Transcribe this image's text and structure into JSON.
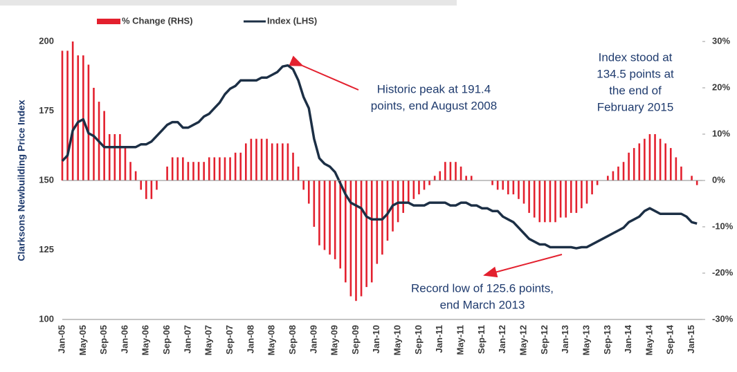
{
  "chart_data": {
    "type": "bar_line",
    "y_label": "Clarksons Newbuilding Price Index",
    "categories": [
      "Jan-05",
      null,
      null,
      null,
      "May-05",
      null,
      null,
      null,
      "Sep-05",
      null,
      null,
      null,
      "Jan-06",
      null,
      null,
      null,
      "May-06",
      null,
      null,
      null,
      "Sep-06",
      null,
      null,
      null,
      "Jan-07",
      null,
      null,
      null,
      "May-07",
      null,
      null,
      null,
      "Sep-07",
      null,
      null,
      null,
      "Jan-08",
      null,
      null,
      null,
      "May-08",
      null,
      null,
      null,
      "Sep-08",
      null,
      null,
      null,
      "Jan-09",
      null,
      null,
      null,
      "May-09",
      null,
      null,
      null,
      "Sep-09",
      null,
      null,
      null,
      "Jan-10",
      null,
      null,
      null,
      "May-10",
      null,
      null,
      null,
      "Sep-10",
      null,
      null,
      null,
      "Jan-11",
      null,
      null,
      null,
      "May-11",
      null,
      null,
      null,
      "Sep-11",
      null,
      null,
      null,
      "Jan-12",
      null,
      null,
      null,
      "May-12",
      null,
      null,
      null,
      "Sep-12",
      null,
      null,
      null,
      "Jan-13",
      null,
      null,
      null,
      "May-13",
      null,
      null,
      null,
      "Sep-13",
      null,
      null,
      null,
      "Jan-14",
      null,
      null,
      null,
      "May-14",
      null,
      null,
      null,
      "Sep-14",
      null,
      null,
      null,
      "Jan-15",
      null
    ],
    "series": [
      {
        "name": "% Change (RHS)",
        "color": "#e3202e",
        "axis": "y2",
        "values": [
          28,
          28,
          30,
          27,
          27,
          25,
          20,
          17,
          15,
          10,
          10,
          10,
          7,
          4,
          2,
          -2,
          -4,
          -4,
          -2,
          0,
          3,
          5,
          5,
          5,
          4,
          4,
          4,
          4,
          5,
          5,
          5,
          5,
          5,
          6,
          6,
          8,
          9,
          9,
          9,
          9,
          8,
          8,
          8,
          8,
          6,
          3,
          -2,
          -5,
          -10,
          -14,
          -15,
          -16,
          -17,
          -19,
          -22,
          -25,
          -26,
          -25,
          -23,
          -22,
          -18,
          -16,
          -13,
          -11,
          -9,
          -7,
          -5,
          -4,
          -3,
          -2,
          -1,
          1,
          2,
          4,
          4,
          4,
          3,
          1,
          1,
          0,
          0,
          0,
          -1,
          -2,
          -2,
          -3,
          -3,
          -4,
          -5,
          -7,
          -8,
          -9,
          -9,
          -9,
          -9,
          -8,
          -8,
          -7,
          -7,
          -6,
          -5,
          -3,
          -1,
          0,
          1,
          2,
          3,
          4,
          6,
          7,
          8,
          9,
          10,
          10,
          9,
          8,
          7,
          5,
          3,
          0,
          1,
          -1
        ]
      },
      {
        "name": "Index (LHS)",
        "color": "#1c2f45",
        "values": [
          157,
          159,
          168,
          171,
          172,
          167,
          166,
          164,
          162,
          162,
          162,
          162,
          162,
          162,
          162,
          163,
          163,
          164,
          166,
          168,
          170,
          171,
          171,
          169,
          169,
          170,
          171,
          173,
          174,
          176,
          178,
          181,
          183,
          184,
          186,
          186,
          186,
          186,
          187,
          187,
          188,
          189,
          191,
          191.4,
          190,
          186,
          180,
          176,
          165,
          158,
          156,
          155,
          153,
          149,
          145,
          142,
          141,
          140,
          137,
          136,
          136,
          136,
          138,
          141,
          142,
          142,
          142,
          141,
          141,
          141,
          142,
          142,
          142,
          142,
          141,
          141,
          142,
          142,
          141,
          141,
          140,
          140,
          139,
          139,
          137,
          136,
          135,
          133,
          131,
          129,
          128,
          127,
          127,
          126,
          126,
          126,
          126,
          126,
          125.6,
          126,
          126,
          127,
          128,
          129,
          130,
          131,
          132,
          133,
          135,
          136,
          137,
          139,
          140,
          139,
          138,
          138,
          138,
          138,
          138,
          137,
          135,
          134.5
        ]
      }
    ],
    "ylim": [
      100,
      200
    ],
    "yticks": [
      100,
      125,
      150,
      175,
      200
    ],
    "y2lim": [
      -30,
      30
    ],
    "y2ticks": [
      {
        "value": 30,
        "label": "30%"
      },
      {
        "value": 20,
        "label": "20%"
      },
      {
        "value": 10,
        "label": "10%"
      },
      {
        "value": 0,
        "label": "0%"
      },
      {
        "value": -10,
        "label": "-10%"
      },
      {
        "value": -20,
        "label": "-20%"
      },
      {
        "value": -30,
        "label": "-30%"
      }
    ],
    "annotations": [
      [
        "Historic peak at 191.4",
        "points, end August 2008"
      ],
      [
        "Index stood at",
        "134.5 points at",
        "the end of",
        "February 2015"
      ],
      [
        "Record low of 125.6 points,",
        "end March 2013"
      ]
    ]
  }
}
